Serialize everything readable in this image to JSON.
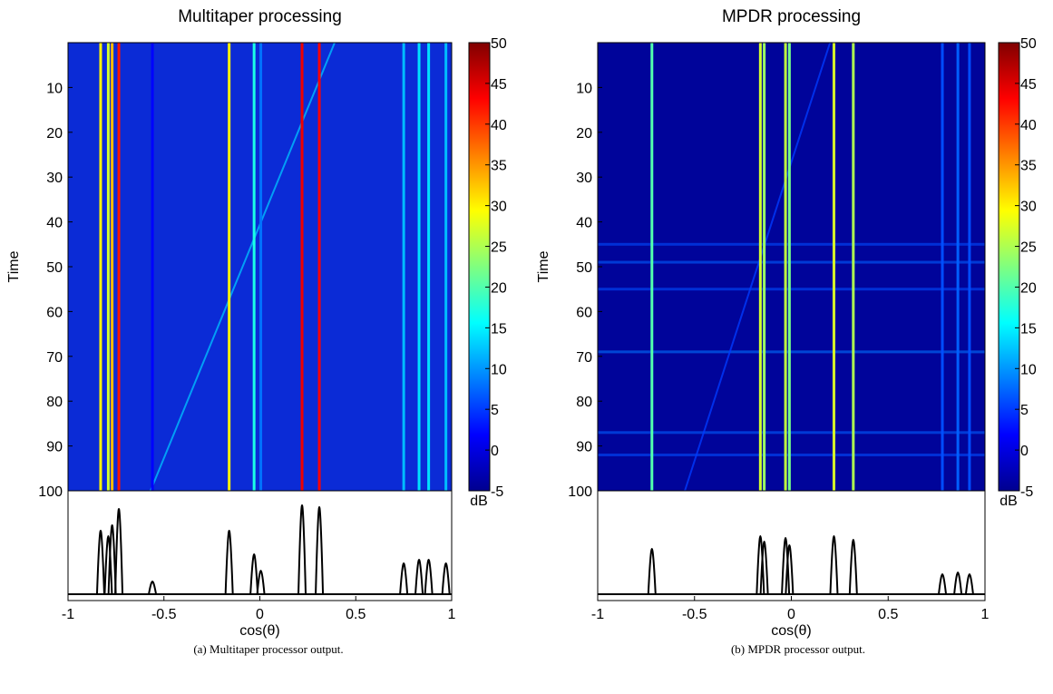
{
  "chart_data": [
    {
      "type": "heatmap",
      "title": "Multitaper processing",
      "xlabel": "cos(θ)",
      "ylabel": "Time",
      "caption": "(a) Multitaper processor output.",
      "xlim": [
        -1,
        1
      ],
      "xticks": [
        -1,
        -0.5,
        0,
        0.5,
        1
      ],
      "ylim": [
        0,
        100
      ],
      "yticks": [
        10,
        20,
        30,
        40,
        50,
        60,
        70,
        80,
        90,
        100
      ],
      "clim": [
        -5,
        50
      ],
      "cticks": [
        -5,
        0,
        5,
        10,
        15,
        20,
        25,
        30,
        35,
        40,
        45,
        50
      ],
      "colorbar_label": "dB",
      "background": "#0b2bd6",
      "sources": [
        {
          "x": -0.83,
          "level": 30
        },
        {
          "x": -0.79,
          "level": 27
        },
        {
          "x": -0.77,
          "level": 33
        },
        {
          "x": -0.735,
          "level": 42
        },
        {
          "x": -0.56,
          "level": 2
        },
        {
          "x": -0.16,
          "level": 30
        },
        {
          "x": -0.03,
          "level": 17
        },
        {
          "x": 0.005,
          "level": 8
        },
        {
          "x": 0.22,
          "level": 44
        },
        {
          "x": 0.31,
          "level": 43
        },
        {
          "x": 0.75,
          "level": 12
        },
        {
          "x": 0.83,
          "level": 14
        },
        {
          "x": 0.88,
          "level": 14
        },
        {
          "x": 0.97,
          "level": 12
        }
      ],
      "track": {
        "x": [
          0.39,
          -0.57
        ],
        "t": [
          0,
          100
        ],
        "level": 12
      },
      "bands": []
    },
    {
      "type": "heatmap",
      "title": "MPDR processing",
      "xlabel": "cos(θ)",
      "ylabel": "Time",
      "caption": "(b) MPDR processor output.",
      "xlim": [
        -1,
        1
      ],
      "xticks": [
        -1,
        -0.5,
        0,
        0.5,
        1
      ],
      "ylim": [
        0,
        100
      ],
      "yticks": [
        10,
        20,
        30,
        40,
        50,
        60,
        70,
        80,
        90,
        100
      ],
      "clim": [
        -5,
        50
      ],
      "cticks": [
        -5,
        0,
        5,
        10,
        15,
        20,
        25,
        30,
        35,
        40,
        45,
        50
      ],
      "colorbar_label": "dB",
      "background": "#00049a",
      "sources": [
        {
          "x": -0.72,
          "level": 20
        },
        {
          "x": -0.16,
          "level": 27
        },
        {
          "x": -0.14,
          "level": 24
        },
        {
          "x": -0.03,
          "level": 26
        },
        {
          "x": -0.01,
          "level": 22
        },
        {
          "x": 0.22,
          "level": 27
        },
        {
          "x": 0.32,
          "level": 25
        },
        {
          "x": 0.78,
          "level": 6
        },
        {
          "x": 0.86,
          "level": 7
        },
        {
          "x": 0.92,
          "level": 6
        }
      ],
      "track": {
        "x": [
          0.2,
          -0.55
        ],
        "t": [
          0,
          100
        ],
        "level": 5
      },
      "bands": [
        {
          "t": 45,
          "level": 6
        },
        {
          "t": 49,
          "level": 7
        },
        {
          "t": 55,
          "level": 6
        },
        {
          "t": 69,
          "level": 8
        },
        {
          "t": 87,
          "level": 7
        },
        {
          "t": 92,
          "level": 6
        }
      ]
    }
  ]
}
